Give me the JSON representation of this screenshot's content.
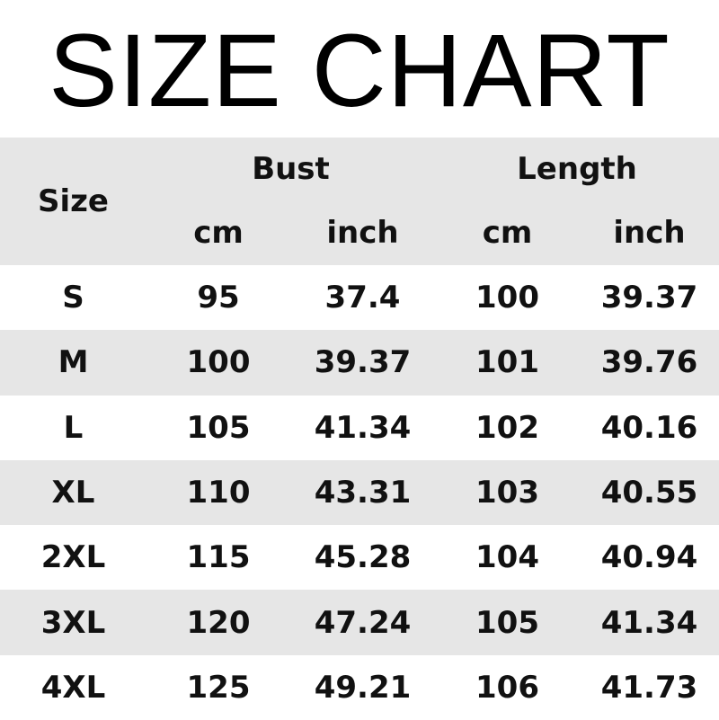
{
  "title": "SIZE CHART",
  "colors": {
    "header_bg": "#e6e6e6",
    "stripe_bg": "#e6e6e6",
    "text": "#111111"
  },
  "headers": {
    "size": "Size",
    "bust": "Bust",
    "length": "Length",
    "units": [
      "cm",
      "inch",
      "cm",
      "inch"
    ]
  },
  "rows": [
    {
      "size": "S",
      "bust_cm": "95",
      "bust_inch": "37.4",
      "length_cm": "100",
      "length_inch": "39.37"
    },
    {
      "size": "M",
      "bust_cm": "100",
      "bust_inch": "39.37",
      "length_cm": "101",
      "length_inch": "39.76"
    },
    {
      "size": "L",
      "bust_cm": "105",
      "bust_inch": "41.34",
      "length_cm": "102",
      "length_inch": "40.16"
    },
    {
      "size": "XL",
      "bust_cm": "110",
      "bust_inch": "43.31",
      "length_cm": "103",
      "length_inch": "40.55"
    },
    {
      "size": "2XL",
      "bust_cm": "115",
      "bust_inch": "45.28",
      "length_cm": "104",
      "length_inch": "40.94"
    },
    {
      "size": "3XL",
      "bust_cm": "120",
      "bust_inch": "47.24",
      "length_cm": "105",
      "length_inch": "41.34"
    },
    {
      "size": "4XL",
      "bust_cm": "125",
      "bust_inch": "49.21",
      "length_cm": "106",
      "length_inch": "41.73"
    }
  ]
}
